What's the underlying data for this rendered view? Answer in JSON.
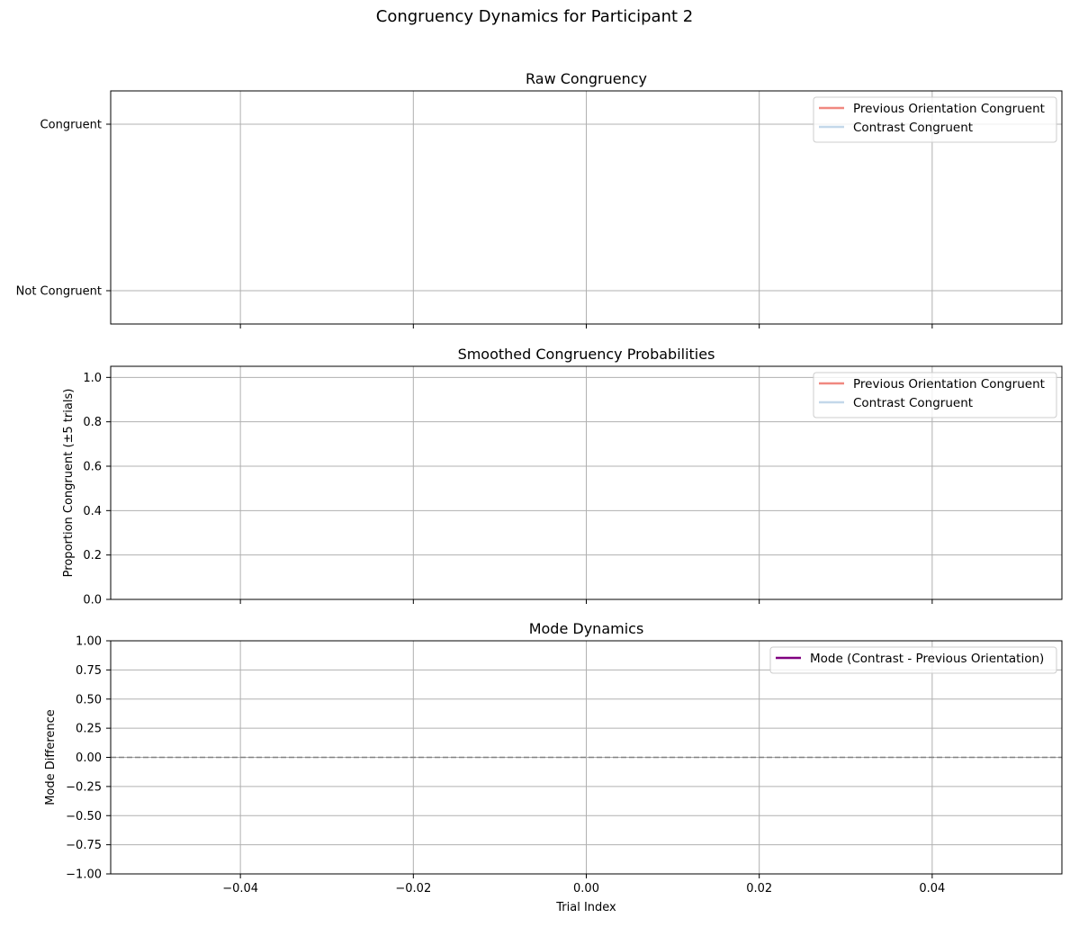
{
  "figure": {
    "suptitle": "Congruency Dynamics for Participant 2"
  },
  "chart_data": [
    {
      "type": "line",
      "title": "Raw Congruency",
      "xlabel": "",
      "ylabel": "",
      "xlim": [
        -0.055,
        0.055
      ],
      "ylim": [
        -0.2,
        1.2
      ],
      "x_ticks": [
        -0.04,
        -0.02,
        0.0,
        0.02,
        0.04
      ],
      "x_tick_labels_visible": false,
      "y_ticks": [
        0,
        1
      ],
      "y_tick_labels": [
        "Not Congruent",
        "Congruent"
      ],
      "grid": true,
      "legend_position": "top-right",
      "series": [
        {
          "name": "Previous Orientation Congruent",
          "color": "#f08880",
          "x": [],
          "y": []
        },
        {
          "name": "Contrast Congruent",
          "color": "#c3d8ea",
          "x": [],
          "y": []
        }
      ],
      "reference_lines": []
    },
    {
      "type": "line",
      "title": "Smoothed Congruency Probabilities",
      "xlabel": "",
      "ylabel": "Proportion Congruent (±5 trials)",
      "xlim": [
        -0.055,
        0.055
      ],
      "ylim": [
        0,
        1.05
      ],
      "x_ticks": [
        -0.04,
        -0.02,
        0.0,
        0.02,
        0.04
      ],
      "x_tick_labels_visible": false,
      "y_ticks": [
        0,
        0.2,
        0.4,
        0.6,
        0.8,
        1.0
      ],
      "y_tick_labels": [
        "0.0",
        "0.2",
        "0.4",
        "0.6",
        "0.8",
        "1.0"
      ],
      "grid": true,
      "legend_position": "top-right",
      "series": [
        {
          "name": "Previous Orientation Congruent",
          "color": "#f08880",
          "x": [],
          "y": []
        },
        {
          "name": "Contrast Congruent",
          "color": "#c3d8ea",
          "x": [],
          "y": []
        }
      ],
      "reference_lines": []
    },
    {
      "type": "line",
      "title": "Mode Dynamics",
      "xlabel": "Trial Index",
      "ylabel": "Mode Difference",
      "xlim": [
        -0.055,
        0.055
      ],
      "ylim": [
        -1,
        1
      ],
      "x_ticks": [
        -0.04,
        -0.02,
        0.0,
        0.02,
        0.04
      ],
      "x_tick_labels": [
        "−0.04",
        "−0.02",
        "0.00",
        "0.02",
        "0.04"
      ],
      "x_tick_labels_visible": true,
      "y_ticks": [
        -1,
        -0.75,
        -0.5,
        -0.25,
        0,
        0.25,
        0.5,
        0.75,
        1
      ],
      "y_tick_labels": [
        "−1.00",
        "−0.75",
        "−0.50",
        "−0.25",
        "0.00",
        "0.25",
        "0.50",
        "0.75",
        "1.00"
      ],
      "grid": true,
      "legend_position": "top-right",
      "series": [
        {
          "name": "Mode (Contrast - Previous Orientation)",
          "color": "#800080",
          "x": [],
          "y": []
        }
      ],
      "reference_lines": [
        {
          "orientation": "horizontal",
          "value": 0,
          "style": "dashed",
          "color": "#808080"
        }
      ]
    }
  ]
}
